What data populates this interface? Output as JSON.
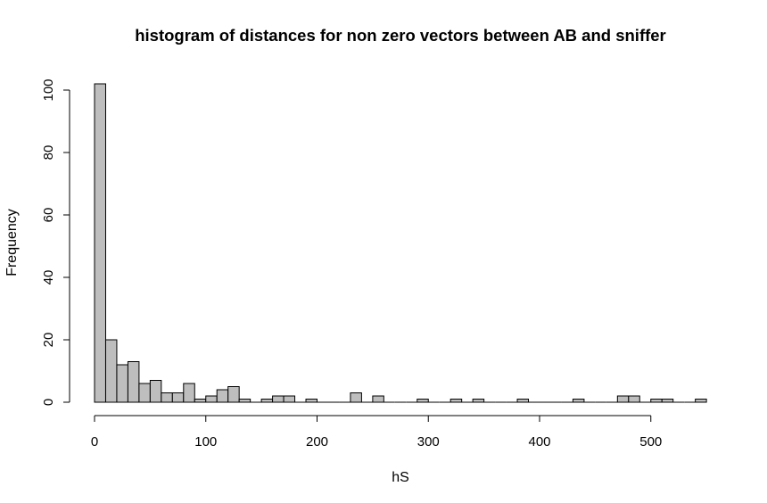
{
  "chart_data": {
    "type": "bar",
    "title": "histogram of distances for non zero vectors between AB and sniffer",
    "xlabel": "hS",
    "ylabel": "Frequency",
    "bin_width": 10,
    "bin_starts": [
      0,
      10,
      20,
      30,
      40,
      50,
      60,
      70,
      80,
      90,
      100,
      110,
      120,
      130,
      140,
      150,
      160,
      170,
      180,
      190,
      200,
      210,
      220,
      230,
      240,
      250,
      260,
      270,
      280,
      290,
      300,
      310,
      320,
      330,
      340,
      350,
      360,
      370,
      380,
      390,
      400,
      410,
      420,
      430,
      440,
      450,
      460,
      470,
      480,
      490,
      500,
      510,
      520,
      530,
      540
    ],
    "values": [
      102,
      20,
      12,
      13,
      6,
      7,
      3,
      3,
      6,
      1,
      2,
      4,
      5,
      1,
      0,
      1,
      2,
      2,
      0,
      1,
      0,
      0,
      0,
      3,
      0,
      2,
      0,
      0,
      0,
      1,
      0,
      0,
      1,
      0,
      1,
      0,
      0,
      0,
      1,
      0,
      0,
      0,
      0,
      1,
      0,
      0,
      0,
      2,
      2,
      0,
      1,
      1,
      0,
      0,
      1
    ],
    "xlim": [
      0,
      550
    ],
    "ylim": [
      0,
      102
    ],
    "x_ticks": [
      "0",
      "100",
      "200",
      "300",
      "400",
      "500"
    ],
    "y_ticks": [
      "0",
      "20",
      "40",
      "60",
      "80",
      "100"
    ],
    "bar_color": "#bebebe",
    "grid": false
  }
}
